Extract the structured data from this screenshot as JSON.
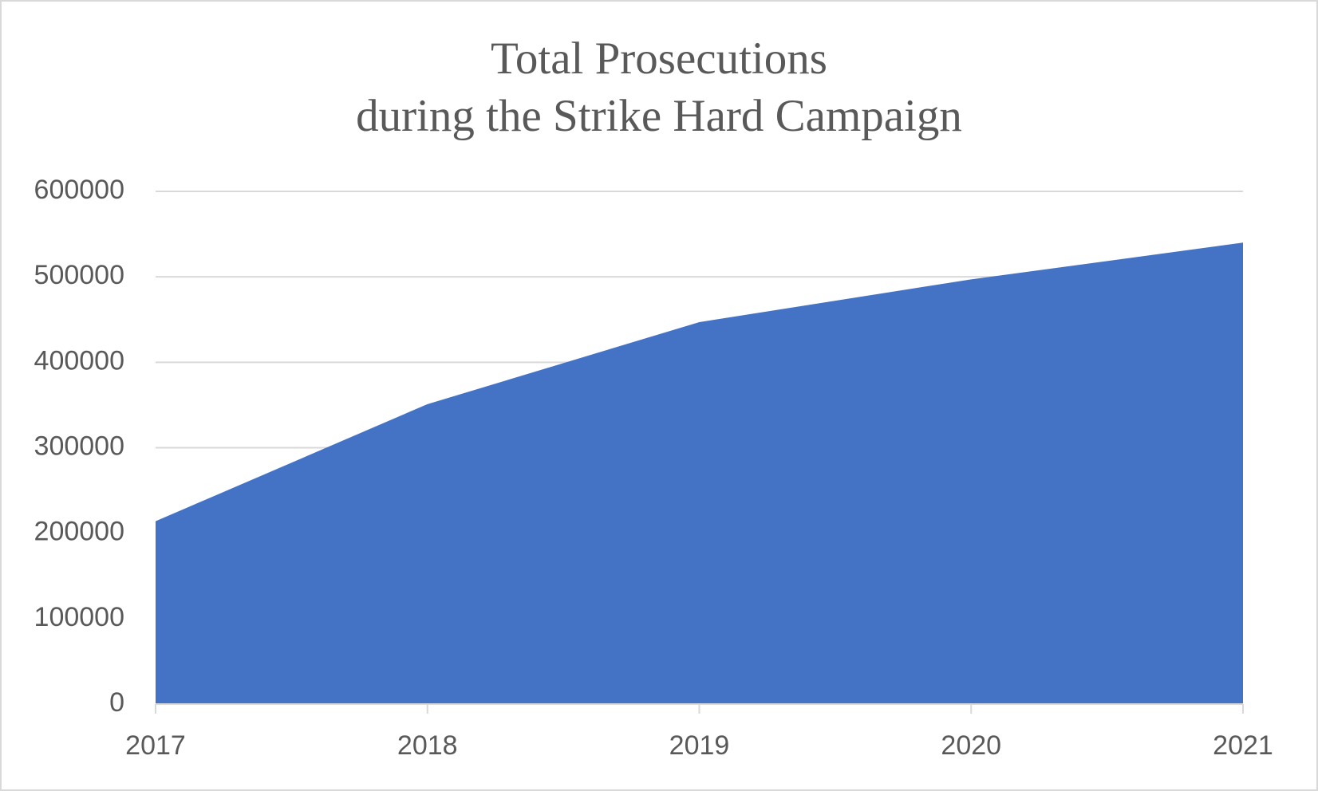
{
  "chart_data": {
    "type": "area",
    "title": [
      "Total Prosecutions",
      "during the Strike Hard Campaign"
    ],
    "categories": [
      "2017",
      "2018",
      "2019",
      "2020",
      "2021"
    ],
    "values": [
      214000,
      351000,
      447000,
      497000,
      540000
    ],
    "color": "#4472c4",
    "ylim": [
      0,
      600000
    ],
    "yticks": [
      0,
      100000,
      200000,
      300000,
      400000,
      500000,
      600000
    ],
    "grid": true
  }
}
